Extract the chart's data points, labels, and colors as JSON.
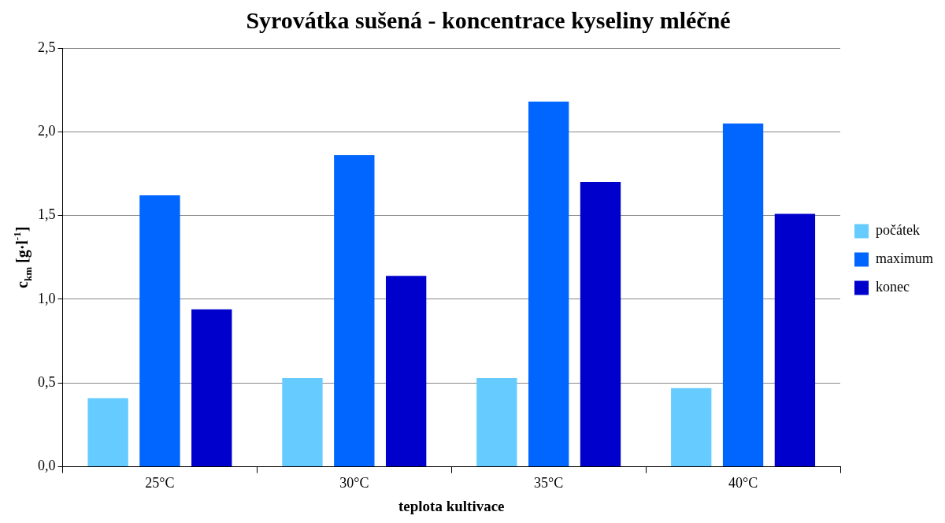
{
  "chart_data": {
    "type": "bar",
    "title": "Syrovátka sušená - koncentrace kyseliny mléčné",
    "xlabel": "teplota kultivace",
    "ylabel": "c$_{km}$ [g·l$^{-1}$]",
    "categories": [
      "25°C",
      "30°C",
      "35°C",
      "40°C"
    ],
    "series": [
      {
        "name": "počátek",
        "color": "#66ccff",
        "values": [
          0.41,
          0.53,
          0.53,
          0.47
        ]
      },
      {
        "name": "maximum",
        "color": "#0066ff",
        "values": [
          1.62,
          1.86,
          2.18,
          2.05
        ]
      },
      {
        "name": "konec",
        "color": "#0000cc",
        "values": [
          0.94,
          1.14,
          1.7,
          1.51
        ]
      }
    ],
    "ylim": [
      0,
      2.5
    ],
    "yticks": [
      {
        "value": 0,
        "label": "0,0"
      },
      {
        "value": 0.5,
        "label": "0,5"
      },
      {
        "value": 1,
        "label": "1,0"
      },
      {
        "value": 1.5,
        "label": "1,5"
      },
      {
        "value": 2,
        "label": "2,0"
      },
      {
        "value": 2.5,
        "label": "2,5"
      }
    ],
    "grid": "y",
    "legend": "right"
  }
}
